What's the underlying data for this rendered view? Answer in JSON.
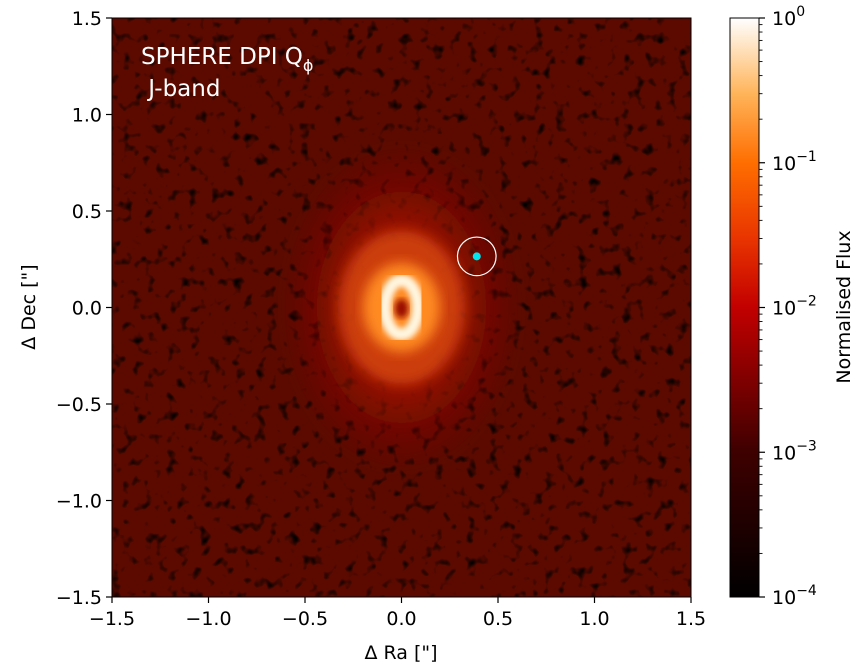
{
  "chart_data": {
    "type": "heatmap",
    "title_line1": "SPHERE DPI Q",
    "title_sub": "ϕ",
    "title_line2": " J-band",
    "xlabel": "Δ Ra [\"]",
    "ylabel": "Δ Dec [\"]",
    "xlim": [
      -1.5,
      1.5
    ],
    "ylim": [
      -1.5,
      1.5
    ],
    "xticks": [
      -1.5,
      -1.0,
      -0.5,
      0.0,
      0.5,
      1.0,
      1.5
    ],
    "xtick_labels": [
      "−1.5",
      "−1.0",
      "−0.5",
      "0.0",
      "0.5",
      "1.0",
      "1.5"
    ],
    "yticks": [
      -1.5,
      -1.0,
      -0.5,
      0.0,
      0.5,
      1.0,
      1.5
    ],
    "ytick_labels": [
      "−1.5",
      "−1.0",
      "−0.5",
      "0.0",
      "0.5",
      "1.0",
      "1.5"
    ],
    "colorbar": {
      "label": "Normalised Flux",
      "scale": "log",
      "range": [
        0.0001,
        1
      ],
      "colormap": "gist_heat",
      "ticks": [
        {
          "value": 1,
          "base": "10",
          "exp": "0"
        },
        {
          "value": 0.1,
          "base": "10",
          "exp": "−1"
        },
        {
          "value": 0.01,
          "base": "10",
          "exp": "−2"
        },
        {
          "value": 0.001,
          "base": "10",
          "exp": "−3"
        },
        {
          "value": 0.0001,
          "base": "10",
          "exp": "−4"
        }
      ]
    },
    "image_description_values": {
      "central_ring_peak": 1.0,
      "central_hole": 0.01,
      "outer_disk": 0.01,
      "background": 0.001
    },
    "marker": {
      "x": 0.39,
      "y": 0.265,
      "circle_radius": 0.1,
      "marker_color": "#00e5ee",
      "circle_color": "#ffffff"
    }
  }
}
